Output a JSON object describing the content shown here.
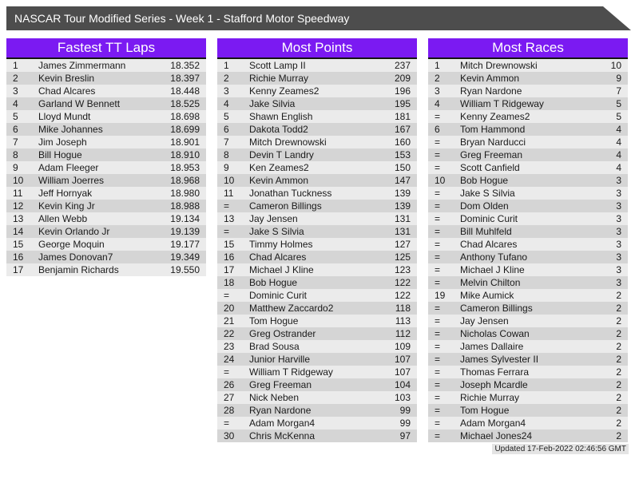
{
  "title": "NASCAR Tour Modified Series - Week 1 - Stafford Motor Speedway",
  "footer": {
    "updated": "Updated 17-Feb-2022 02:46:56 GMT"
  },
  "colors": {
    "title_bar_bg": "#4d4d4d",
    "header_purple": "#7b1af2",
    "row_light": "#ebebeb",
    "row_dark": "#d5d5d5"
  },
  "tables": [
    {
      "title": "Fastest TT Laps",
      "rows": [
        [
          "1",
          "James Zimmermann",
          "18.352"
        ],
        [
          "2",
          "Kevin Breslin",
          "18.397"
        ],
        [
          "3",
          "Chad Alcares",
          "18.448"
        ],
        [
          "4",
          "Garland W Bennett",
          "18.525"
        ],
        [
          "5",
          "Lloyd Mundt",
          "18.698"
        ],
        [
          "6",
          "Mike Johannes",
          "18.699"
        ],
        [
          "7",
          "Jim Joseph",
          "18.901"
        ],
        [
          "8",
          "Bill Hogue",
          "18.910"
        ],
        [
          "9",
          "Adam Fleeger",
          "18.953"
        ],
        [
          "10",
          "William Joerres",
          "18.968"
        ],
        [
          "11",
          "Jeff Hornyak",
          "18.980"
        ],
        [
          "12",
          "Kevin King Jr",
          "18.988"
        ],
        [
          "13",
          "Allen Webb",
          "19.134"
        ],
        [
          "14",
          "Kevin Orlando Jr",
          "19.139"
        ],
        [
          "15",
          "George Moquin",
          "19.177"
        ],
        [
          "16",
          "James Donovan7",
          "19.349"
        ],
        [
          "17",
          "Benjamin Richards",
          "19.550"
        ]
      ]
    },
    {
      "title": "Most Points",
      "rows": [
        [
          "1",
          "Scott Lamp II",
          "237"
        ],
        [
          "2",
          "Richie Murray",
          "209"
        ],
        [
          "3",
          "Kenny Zeames2",
          "196"
        ],
        [
          "4",
          "Jake Silvia",
          "195"
        ],
        [
          "5",
          "Shawn English",
          "181"
        ],
        [
          "6",
          "Dakota Todd2",
          "167"
        ],
        [
          "7",
          "Mitch Drewnowski",
          "160"
        ],
        [
          "8",
          "Devin T Landry",
          "153"
        ],
        [
          "9",
          "Ken Zeames2",
          "150"
        ],
        [
          "10",
          "Kevin Ammon",
          "147"
        ],
        [
          "11",
          "Jonathan Tuckness",
          "139"
        ],
        [
          "=",
          "Cameron Billings",
          "139"
        ],
        [
          "13",
          "Jay Jensen",
          "131"
        ],
        [
          "=",
          "Jake S Silvia",
          "131"
        ],
        [
          "15",
          "Timmy Holmes",
          "127"
        ],
        [
          "16",
          "Chad Alcares",
          "125"
        ],
        [
          "17",
          "Michael J Kline",
          "123"
        ],
        [
          "18",
          "Bob Hogue",
          "122"
        ],
        [
          "=",
          "Dominic Curit",
          "122"
        ],
        [
          "20",
          "Matthew Zaccardo2",
          "118"
        ],
        [
          "21",
          "Tom Hogue",
          "113"
        ],
        [
          "22",
          "Greg Ostrander",
          "112"
        ],
        [
          "23",
          "Brad Sousa",
          "109"
        ],
        [
          "24",
          "Junior Harville",
          "107"
        ],
        [
          "=",
          "William T Ridgeway",
          "107"
        ],
        [
          "26",
          "Greg Freeman",
          "104"
        ],
        [
          "27",
          "Nick Neben",
          "103"
        ],
        [
          "28",
          "Ryan Nardone",
          "99"
        ],
        [
          "=",
          "Adam Morgan4",
          "99"
        ],
        [
          "30",
          "Chris McKenna",
          "97"
        ]
      ]
    },
    {
      "title": "Most Races",
      "rows": [
        [
          "1",
          "Mitch Drewnowski",
          "10"
        ],
        [
          "2",
          "Kevin Ammon",
          "9"
        ],
        [
          "3",
          "Ryan Nardone",
          "7"
        ],
        [
          "4",
          "William T Ridgeway",
          "5"
        ],
        [
          "=",
          "Kenny Zeames2",
          "5"
        ],
        [
          "6",
          "Tom Hammond",
          "4"
        ],
        [
          "=",
          "Bryan Narducci",
          "4"
        ],
        [
          "=",
          "Greg Freeman",
          "4"
        ],
        [
          "=",
          "Scott Canfield",
          "4"
        ],
        [
          "10",
          "Bob Hogue",
          "3"
        ],
        [
          "=",
          "Jake S Silvia",
          "3"
        ],
        [
          "=",
          "Dom Olden",
          "3"
        ],
        [
          "=",
          "Dominic Curit",
          "3"
        ],
        [
          "=",
          "Bill Muhlfeld",
          "3"
        ],
        [
          "=",
          "Chad Alcares",
          "3"
        ],
        [
          "=",
          "Anthony Tufano",
          "3"
        ],
        [
          "=",
          "Michael J Kline",
          "3"
        ],
        [
          "=",
          "Melvin Chilton",
          "3"
        ],
        [
          "19",
          "Mike Aumick",
          "2"
        ],
        [
          "=",
          "Cameron Billings",
          "2"
        ],
        [
          "=",
          "Jay Jensen",
          "2"
        ],
        [
          "=",
          "Nicholas Cowan",
          "2"
        ],
        [
          "=",
          "James Dallaire",
          "2"
        ],
        [
          "=",
          "James Sylvester II",
          "2"
        ],
        [
          "=",
          "Thomas Ferrara",
          "2"
        ],
        [
          "=",
          "Joseph Mcardle",
          "2"
        ],
        [
          "=",
          "Richie Murray",
          "2"
        ],
        [
          "=",
          "Tom Hogue",
          "2"
        ],
        [
          "=",
          "Adam Morgan4",
          "2"
        ],
        [
          "=",
          "Michael Jones24",
          "2"
        ]
      ]
    }
  ]
}
